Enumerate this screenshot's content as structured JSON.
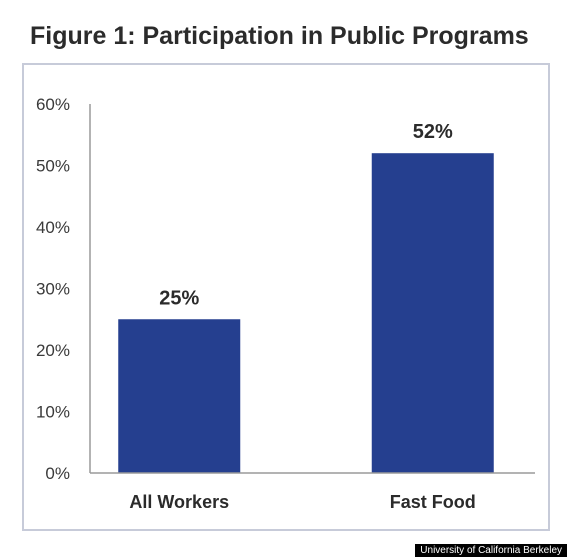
{
  "title": "Figure 1: Participation in Public Programs",
  "credit": "University of California Berkeley",
  "colors": {
    "bar": "#253f8f",
    "axis": "#9a9a9a",
    "frame": "#c7cbd9"
  },
  "chart_data": {
    "type": "bar",
    "title": "Figure 1: Participation in Public Programs",
    "xlabel": "",
    "ylabel": "",
    "categories": [
      "All Workers",
      "Fast Food"
    ],
    "values": [
      25,
      52
    ],
    "value_labels": [
      "25%",
      "52%"
    ],
    "ylim": [
      0,
      60
    ],
    "yticks": [
      0,
      10,
      20,
      30,
      40,
      50,
      60
    ],
    "ytick_labels": [
      "0%",
      "10%",
      "20%",
      "30%",
      "40%",
      "50%",
      "60%"
    ],
    "grid": false,
    "legend": "none"
  }
}
